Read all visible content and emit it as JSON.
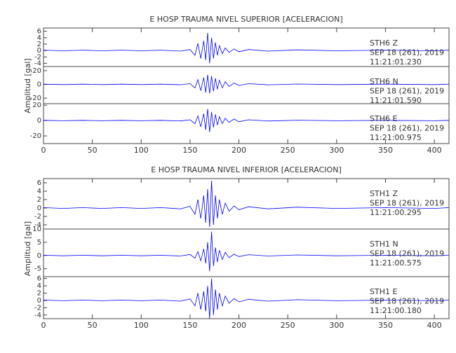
{
  "chart_data": [
    {
      "type": "line",
      "title": "E HOSP TRAUMA NIVEL SUPERIOR [ACELERACION]",
      "ylabel": "Amplitud [gal]",
      "xlim": [
        0,
        415
      ],
      "xticks": [
        0,
        50,
        100,
        150,
        200,
        250,
        300,
        350,
        400
      ],
      "x": [
        0,
        20,
        40,
        60,
        80,
        100,
        120,
        140,
        150,
        155,
        158,
        161,
        164,
        166,
        168,
        170,
        172,
        174,
        176,
        178,
        180,
        183,
        186,
        190,
        195,
        200,
        210,
        230,
        260,
        300,
        350,
        400,
        415
      ],
      "color": "#0000ff",
      "traces": [
        {
          "ylim": [
            -5,
            7
          ],
          "yticks": [
            6,
            4,
            2,
            0,
            -2,
            -4
          ],
          "annotations": [
            "STH6   Z",
            "SEP 18 (261), 2019",
            "11:21:01.230"
          ],
          "values": [
            0.1,
            -0.1,
            0.1,
            -0.1,
            0.1,
            -0.1,
            0.1,
            -0.2,
            0.3,
            -1.5,
            2.2,
            -2.5,
            3,
            -3,
            5.5,
            -4,
            4,
            -2.5,
            2.5,
            -1.5,
            1.5,
            -1,
            0.8,
            -0.6,
            0.5,
            -0.4,
            0.3,
            -0.2,
            0.2,
            -0.1,
            0.1,
            -0.1,
            0.1
          ]
        },
        {
          "ylim": [
            -28,
            26
          ],
          "yticks": [
            20,
            0,
            -20
          ],
          "annotations": [
            "STH6   N",
            "SEP 18 (261), 2019",
            "11:21:01.590"
          ],
          "values": [
            0.3,
            -0.3,
            0.3,
            -0.3,
            0.3,
            -0.3,
            0.3,
            -0.5,
            1,
            -5,
            7,
            -9,
            10,
            -12,
            14,
            -13,
            12,
            -10,
            9,
            -7,
            6,
            -5,
            4,
            -3,
            2,
            -1.5,
            1,
            -0.6,
            0.5,
            -0.3,
            0.3,
            -0.3,
            0.3
          ]
        },
        {
          "ylim": [
            -30,
            22
          ],
          "yticks": [
            20,
            0,
            -20
          ],
          "annotations": [
            "STH6   E",
            "SEP 18 (261), 2019",
            "11:21:00.975"
          ],
          "values": [
            0.3,
            -0.3,
            0.3,
            -0.3,
            0.3,
            -0.3,
            0.3,
            -0.5,
            1,
            -4,
            6,
            -8,
            9,
            -12,
            15,
            -15,
            11,
            -9,
            8,
            -6,
            5,
            -4,
            3,
            -2.5,
            2,
            -1.5,
            1,
            -0.6,
            0.5,
            -0.3,
            0.3,
            -0.3,
            0.3
          ]
        }
      ]
    },
    {
      "type": "line",
      "title": "E HOSP TRAUMA NIVEL INFERIOR [ACELERACION]",
      "ylabel": "Amplitud [gal]",
      "xlim": [
        0,
        415
      ],
      "xticks": [
        0,
        50,
        100,
        150,
        200,
        250,
        300,
        350,
        400
      ],
      "x": [
        0,
        20,
        40,
        60,
        80,
        100,
        120,
        140,
        150,
        155,
        158,
        161,
        164,
        166,
        168,
        170,
        172,
        174,
        176,
        178,
        180,
        183,
        186,
        190,
        195,
        200,
        210,
        230,
        260,
        300,
        350,
        400,
        415
      ],
      "color": "#0000ff",
      "traces": [
        {
          "ylim": [
            -5,
            7
          ],
          "yticks": [
            6,
            4,
            2,
            0,
            -2,
            -4
          ],
          "annotations": [
            "STH1   Z",
            "SEP 18 (261), 2019",
            "11:21:00.295"
          ],
          "values": [
            0.1,
            -0.1,
            0.1,
            -0.1,
            0.1,
            -0.1,
            0.1,
            -0.2,
            0.4,
            -1.5,
            2,
            -2.5,
            3,
            -3.5,
            4.5,
            -4.5,
            6.5,
            -4,
            3,
            -2.5,
            2,
            -1.5,
            1.2,
            -0.8,
            0.5,
            -0.4,
            0.3,
            -0.2,
            0.2,
            -0.1,
            0.1,
            -0.1,
            0.1
          ]
        },
        {
          "ylim": [
            -8,
            10
          ],
          "yticks": [
            10,
            5,
            0,
            -5
          ],
          "annotations": [
            "STH1   N",
            "SEP 18 (261), 2019",
            "11:21:00.575"
          ],
          "values": [
            0.1,
            -0.1,
            0.1,
            -0.1,
            0.1,
            -0.1,
            0.1,
            -0.2,
            0.4,
            -1,
            1.5,
            -2,
            2.5,
            -3,
            5,
            -6,
            9,
            -4,
            3,
            -2.5,
            2,
            -1.5,
            1.2,
            -0.8,
            0.5,
            -0.4,
            0.3,
            -0.2,
            0.2,
            -0.1,
            0.1,
            -0.1,
            0.1
          ]
        },
        {
          "ylim": [
            -5,
            6.5
          ],
          "yticks": [
            6,
            4,
            2,
            0,
            -2,
            -4
          ],
          "annotations": [
            "STH1   E",
            "SEP 18 (261), 2019",
            "11:21:00.180"
          ],
          "values": [
            0.1,
            -0.1,
            0.1,
            -0.1,
            0.1,
            -0.1,
            0.1,
            -0.2,
            0.4,
            -1.5,
            2,
            -2.5,
            2.5,
            -3,
            4,
            -5,
            6,
            -4,
            3,
            -2.5,
            2,
            -1.5,
            1.2,
            -0.8,
            0.5,
            -0.4,
            0.3,
            -0.2,
            0.2,
            -0.1,
            0.1,
            -0.1,
            0.1
          ]
        }
      ]
    }
  ]
}
